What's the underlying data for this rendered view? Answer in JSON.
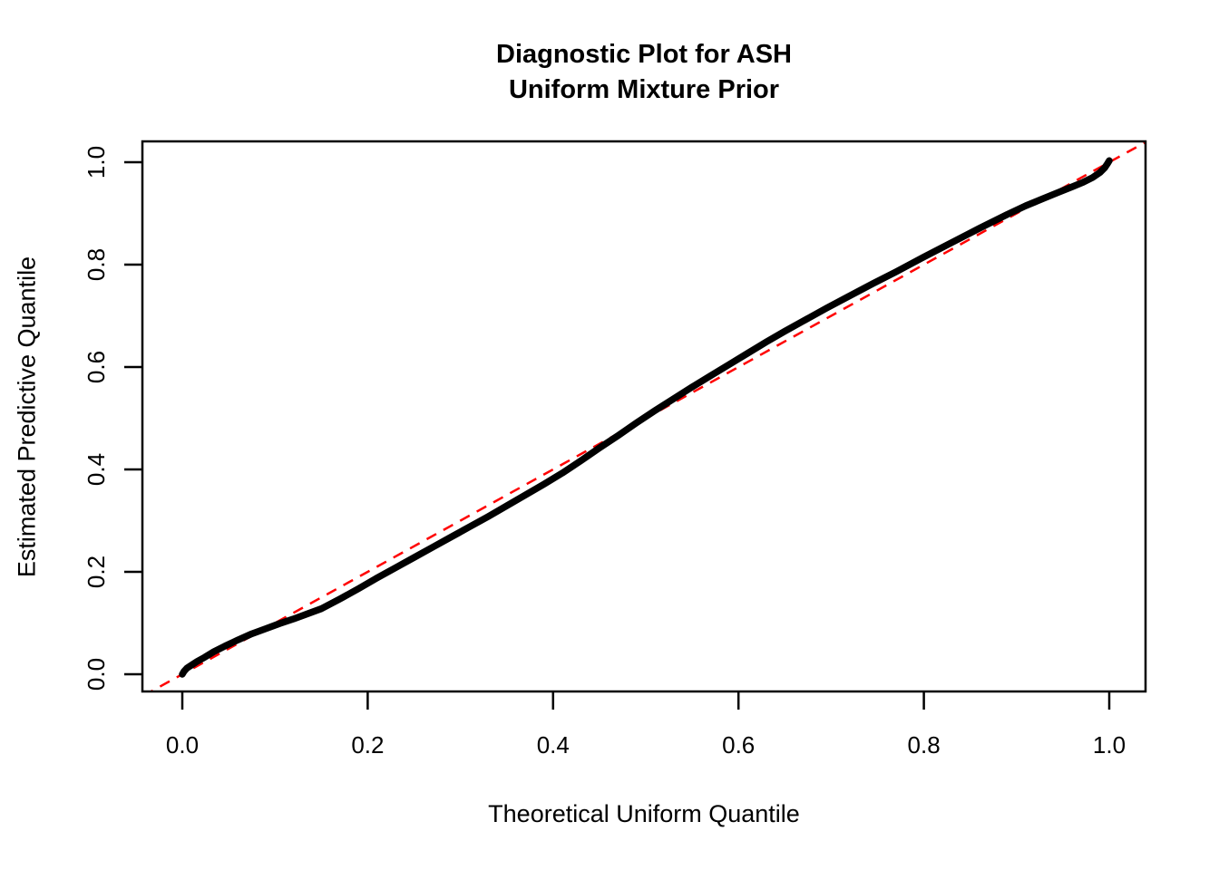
{
  "figure": {
    "title_line1": "Diagnostic Plot for ASH",
    "title_line2": "Uniform Mixture Prior",
    "x_axis_label": "Theoretical Uniform Quantile",
    "y_axis_label": "Estimated Predictive Quantile"
  },
  "colors": {
    "curve": "#000000",
    "reference_line": "#FF0000",
    "axis": "#000000",
    "background": "#FFFFFF",
    "text": "#000000"
  },
  "chart_data": {
    "type": "line",
    "title": "Diagnostic Plot for ASH / Uniform Mixture Prior",
    "xlabel": "Theoretical Uniform Quantile",
    "ylabel": "Estimated Predictive Quantile",
    "xlim": [
      -0.043,
      1.043
    ],
    "ylim": [
      -0.034,
      1.041
    ],
    "x_ticks": [
      0.0,
      0.2,
      0.4,
      0.6,
      0.8,
      1.0
    ],
    "y_ticks": [
      0.0,
      0.2,
      0.4,
      0.6,
      0.8,
      1.0
    ],
    "grid": false,
    "legend_position": "none",
    "series": [
      {
        "name": "estimated-predictive-quantiles",
        "style": "solid",
        "color": "#000000",
        "line_width": 7.5,
        "x": [
          0.0,
          0.002,
          0.005,
          0.01,
          0.016,
          0.024,
          0.034,
          0.046,
          0.06,
          0.075,
          0.09,
          0.105,
          0.12,
          0.135,
          0.15,
          0.17,
          0.19,
          0.21,
          0.23,
          0.25,
          0.27,
          0.29,
          0.31,
          0.33,
          0.35,
          0.37,
          0.39,
          0.41,
          0.43,
          0.45,
          0.47,
          0.49,
          0.51,
          0.53,
          0.55,
          0.57,
          0.59,
          0.61,
          0.63,
          0.65,
          0.67,
          0.695,
          0.72,
          0.745,
          0.77,
          0.8,
          0.83,
          0.86,
          0.89,
          0.91,
          0.93,
          0.945,
          0.96,
          0.972,
          0.982,
          0.99,
          0.995,
          0.998,
          1.0
        ],
        "y": [
          0.0,
          0.006,
          0.012,
          0.018,
          0.025,
          0.033,
          0.044,
          0.055,
          0.067,
          0.079,
          0.089,
          0.099,
          0.108,
          0.118,
          0.128,
          0.147,
          0.167,
          0.188,
          0.208,
          0.228,
          0.248,
          0.268,
          0.288,
          0.308,
          0.329,
          0.35,
          0.371,
          0.393,
          0.417,
          0.442,
          0.466,
          0.491,
          0.515,
          0.538,
          0.561,
          0.583,
          0.605,
          0.627,
          0.649,
          0.67,
          0.69,
          0.715,
          0.739,
          0.763,
          0.786,
          0.815,
          0.843,
          0.871,
          0.898,
          0.915,
          0.93,
          0.941,
          0.952,
          0.961,
          0.97,
          0.98,
          0.989,
          0.997,
          1.003
        ]
      },
      {
        "name": "identity-reference-line",
        "style": "dashed",
        "color": "#FF0000",
        "line_width": 2.5,
        "x": [
          -0.06,
          1.06
        ],
        "y": [
          -0.06,
          1.06
        ]
      }
    ]
  }
}
